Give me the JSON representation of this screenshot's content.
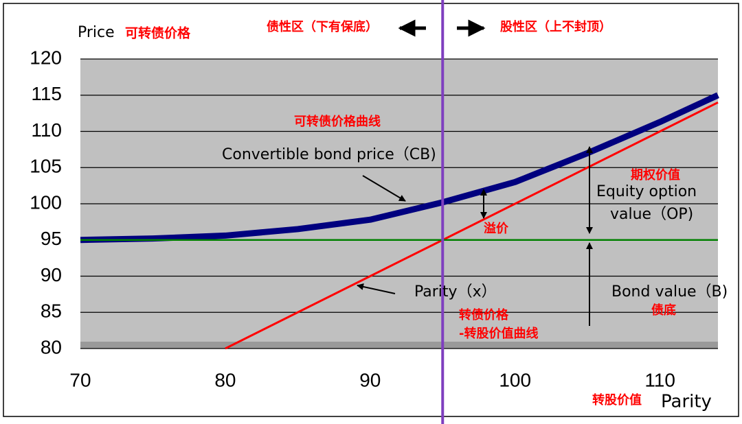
{
  "chart_data": {
    "type": "line",
    "xlim": [
      70,
      114
    ],
    "ylim": [
      80,
      120
    ],
    "xticks": [
      70,
      80,
      90,
      100,
      110
    ],
    "yticks": [
      80,
      85,
      90,
      95,
      100,
      105,
      110,
      115,
      120
    ],
    "grid": true,
    "x_label": "Parity",
    "vline": 95,
    "vline_color": "#7f3fbf",
    "series": [
      {
        "name": "Convertible bond price（CB)",
        "color": "#00007f",
        "x": [
          70,
          75,
          80,
          85,
          90,
          95,
          100,
          105,
          110,
          114
        ],
        "values": [
          95,
          95.2,
          95.6,
          96.5,
          97.8,
          100.2,
          103,
          107,
          111.3,
          115
        ]
      },
      {
        "name": "Parity（x）",
        "color": "#ff0000",
        "x": [
          80,
          114
        ],
        "values": [
          80,
          114
        ]
      },
      {
        "name": "Bond value（B)",
        "color": "#008000",
        "x": [
          70,
          114
        ],
        "values": [
          95,
          95
        ]
      }
    ],
    "annotations": [
      {
        "text": "Price",
        "color": "#000000"
      },
      {
        "text": "可转债价格",
        "color": "#ff0000"
      },
      {
        "text": "债性区（下有保底）",
        "color": "#ff0000"
      },
      {
        "text": "股性区（上不封顶）",
        "color": "#ff0000"
      },
      {
        "text": "可转债价格曲线",
        "color": "#ff0000"
      },
      {
        "text": "Convertible bond price（CB)",
        "color": "#000000"
      },
      {
        "text": "期权价值",
        "color": "#ff0000"
      },
      {
        "text": "Equity option",
        "color": "#000000"
      },
      {
        "text": "value（OP)",
        "color": "#000000"
      },
      {
        "text": "溢价",
        "color": "#ff0000"
      },
      {
        "text": "Parity（x）",
        "color": "#000000"
      },
      {
        "text": "Bond value（B)",
        "color": "#000000"
      },
      {
        "text": "债底",
        "color": "#ff0000"
      },
      {
        "text": "转债价格",
        "color": "#ff0000"
      },
      {
        "text": "-转股价值曲线",
        "color": "#ff0000"
      },
      {
        "text": "转股价值",
        "color": "#ff0000"
      }
    ]
  }
}
